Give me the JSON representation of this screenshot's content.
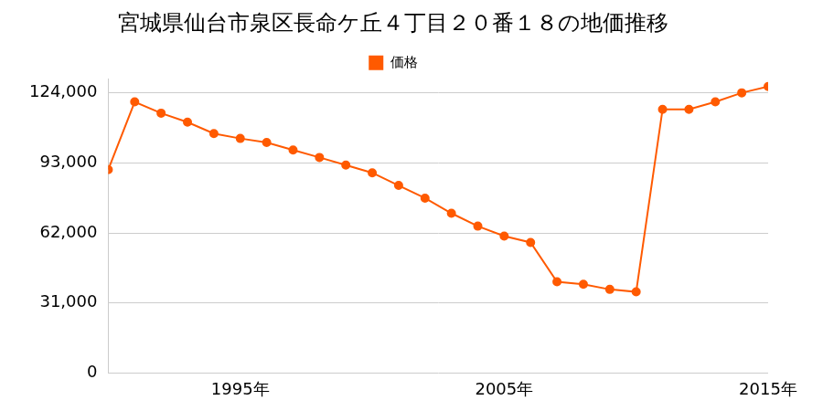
{
  "chart_data": {
    "type": "line",
    "title": "宮城県仙台市泉区長命ケ丘４丁目２０番１８の地価推移",
    "categories": [
      null,
      null,
      null,
      null,
      null,
      "1995年",
      null,
      null,
      null,
      null,
      null,
      null,
      null,
      null,
      null,
      "2005年",
      null,
      null,
      null,
      null,
      null,
      null,
      null,
      null,
      null,
      "2015年"
    ],
    "series": [
      {
        "name": "価格",
        "color": "#ff5a00",
        "marker": "circle",
        "values": [
          90000,
          120000,
          115000,
          111000,
          106000,
          103800,
          102000,
          98700,
          95400,
          92000,
          88600,
          83000,
          77400,
          70700,
          65000,
          60600,
          57800,
          40400,
          39300,
          37000,
          35900,
          116700,
          116700,
          120000,
          124000,
          126800
        ]
      }
    ],
    "ylim": [
      0,
      130000
    ],
    "yticks": [
      0,
      {
        "value": 31000,
        "label": "31,000"
      },
      {
        "value": 62000,
        "label": "62,000"
      },
      {
        "value": 93000,
        "label": "93,000"
      },
      {
        "value": 124000,
        "label": "124,000"
      }
    ],
    "grid": true,
    "legend": "top"
  }
}
